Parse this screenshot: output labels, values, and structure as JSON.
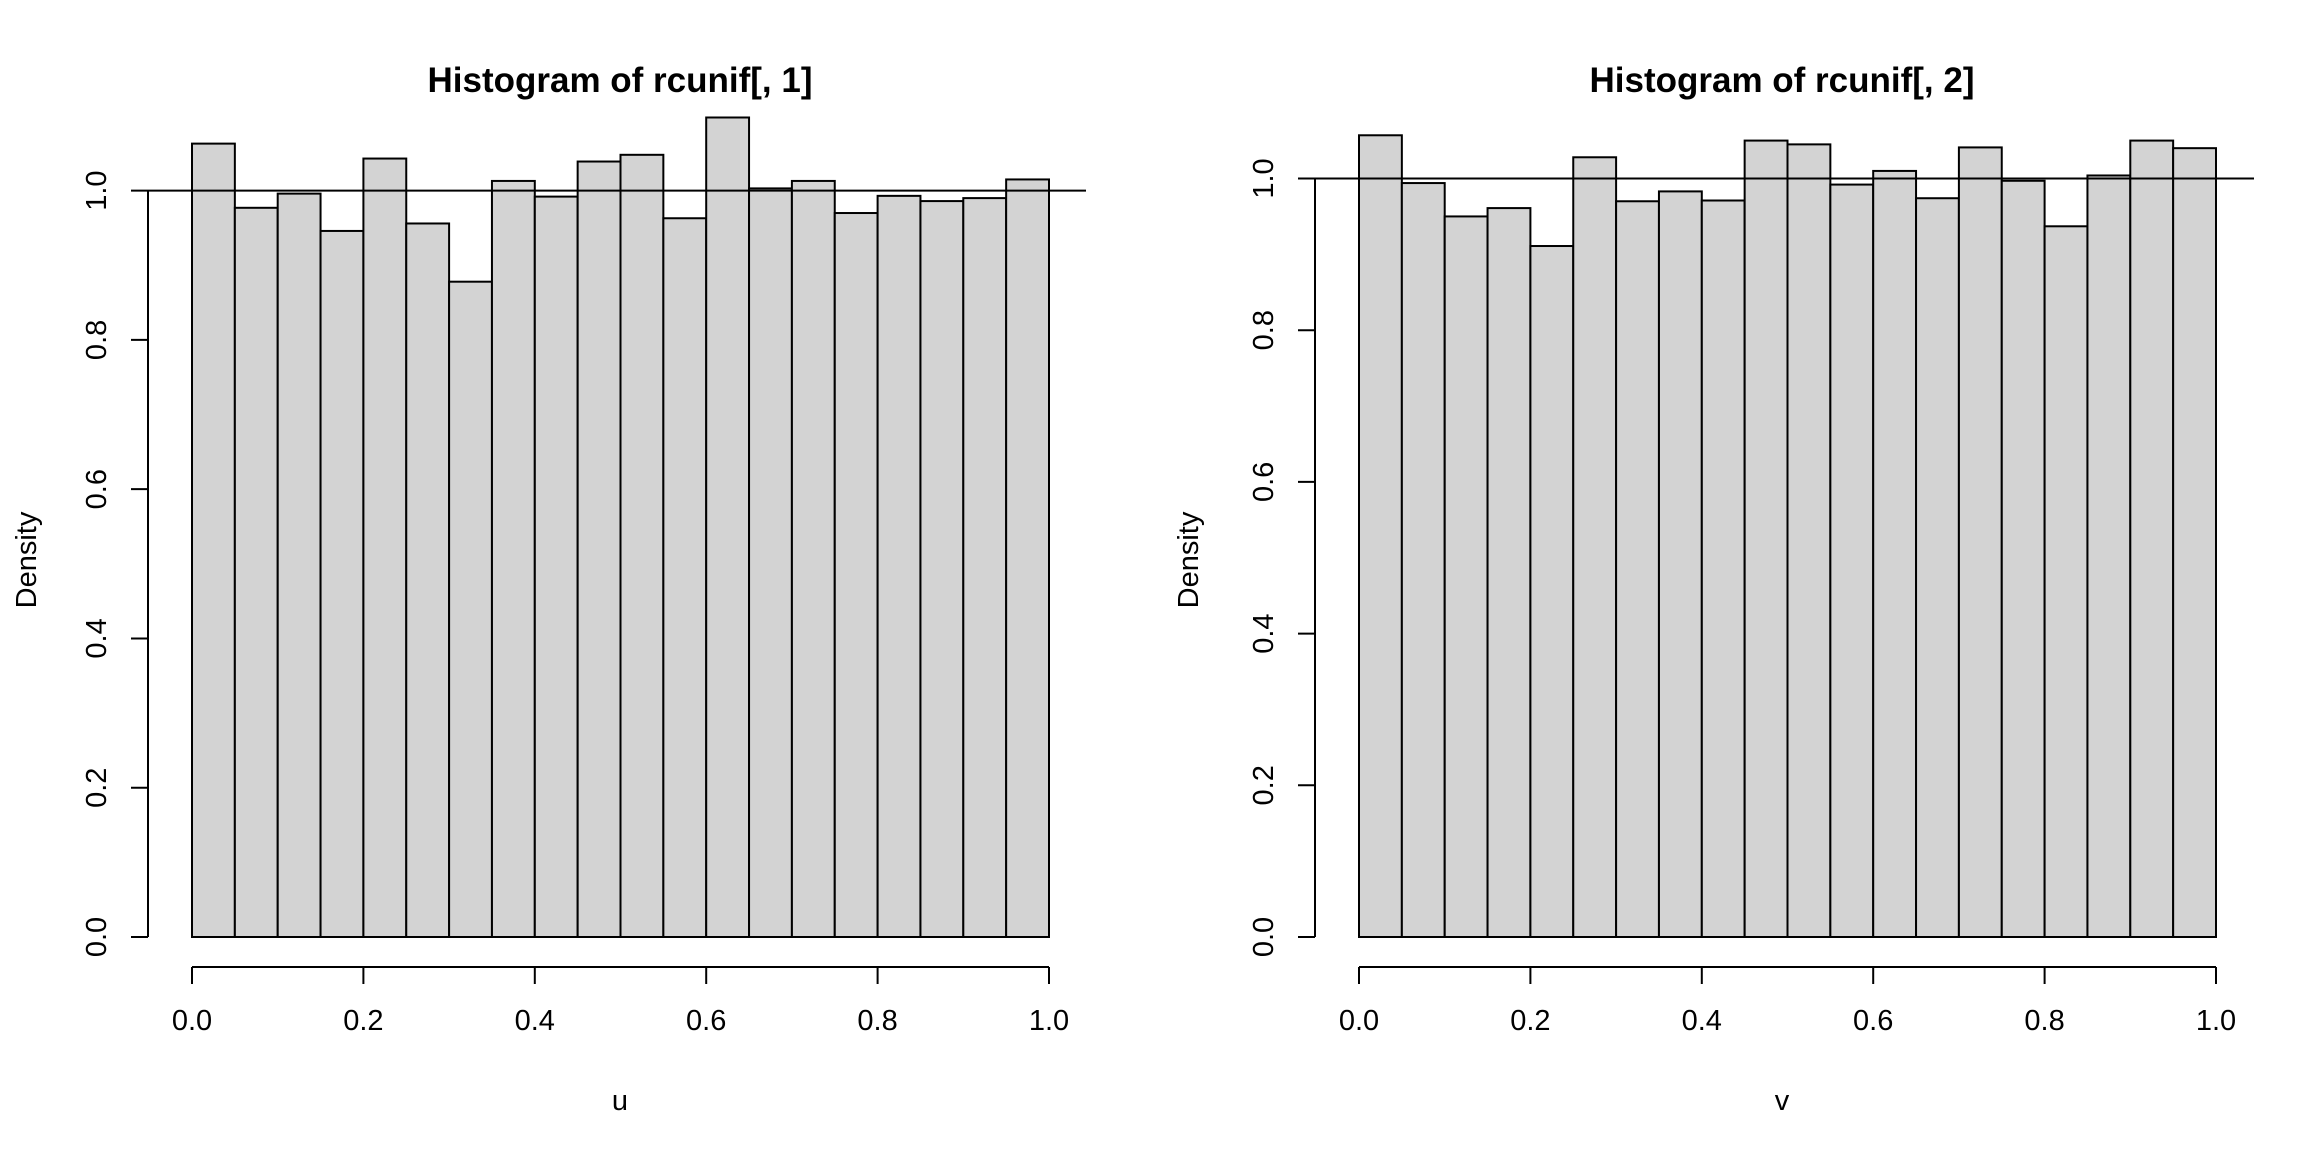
{
  "chart_data": [
    {
      "type": "bar",
      "title": "Histogram of rcunif[, 1]",
      "xlabel": "u",
      "ylabel": "Density",
      "xlim": [
        0,
        1
      ],
      "ylim": [
        0,
        1.1
      ],
      "bin_width": 0.05,
      "bin_start": 0,
      "values": [
        1.063,
        0.977,
        0.996,
        0.946,
        1.043,
        0.956,
        0.878,
        1.013,
        0.992,
        1.039,
        1.048,
        0.963,
        1.098,
        1.003,
        1.013,
        0.97,
        0.993,
        0.986,
        0.99,
        1.015
      ],
      "reference_line": 1.0,
      "x_ticks": [
        "0.0",
        "0.2",
        "0.4",
        "0.6",
        "0.8",
        "1.0"
      ],
      "y_ticks": [
        "0.0",
        "0.2",
        "0.4",
        "0.6",
        "0.8",
        "1.0"
      ],
      "bar_color": "#d3d3d3",
      "grid": false
    },
    {
      "type": "bar",
      "title": "Histogram of rcunif[, 2]",
      "xlabel": "v",
      "ylabel": "Density",
      "xlim": [
        0,
        1
      ],
      "ylim": [
        0,
        1.06
      ],
      "bin_width": 0.05,
      "bin_start": 0,
      "values": [
        1.057,
        0.994,
        0.95,
        0.961,
        0.911,
        1.028,
        0.97,
        0.983,
        0.971,
        1.05,
        1.045,
        0.992,
        1.01,
        0.974,
        1.041,
        0.997,
        0.937,
        1.004,
        1.05,
        1.04
      ],
      "reference_line": 1.0,
      "x_ticks": [
        "0.0",
        "0.2",
        "0.4",
        "0.6",
        "0.8",
        "1.0"
      ],
      "y_ticks": [
        "0.0",
        "0.2",
        "0.4",
        "0.6",
        "0.8",
        "1.0"
      ],
      "bar_color": "#d3d3d3",
      "grid": false
    }
  ]
}
